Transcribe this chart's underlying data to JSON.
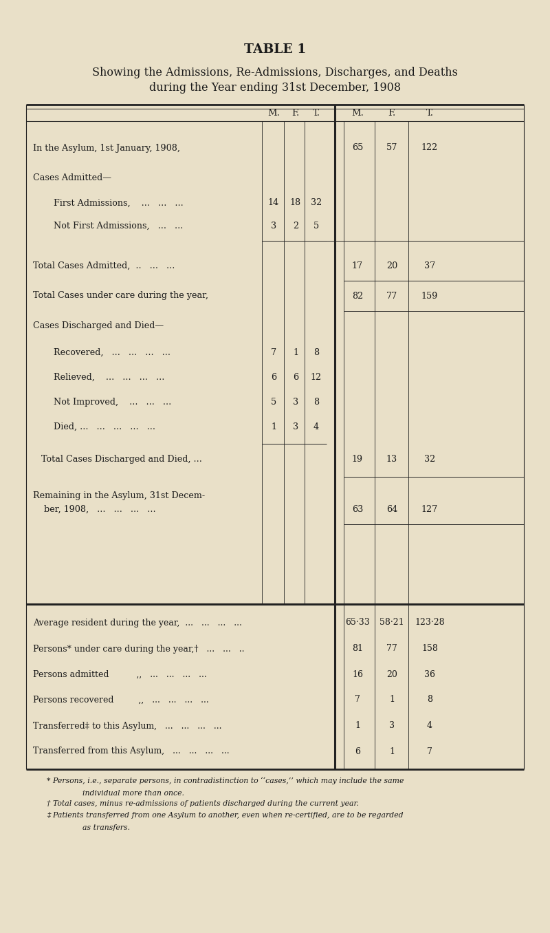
{
  "bg_color": "#e9e0c8",
  "text_color": "#1a1a1a",
  "title1": "TABLE 1",
  "title2": "Showing the Admissions, Re-Admissions, Discharges, and Deaths",
  "title3": "during the Year ending 31st December, 1908",
  "footnotes": [
    "* Persons, i.e., separate persons, in contradistinction to ‘‘cases,’’ which may include the same individual more than once.",
    "† Total cases, minus re-admissions of patients discharged during the current year.",
    "‡ Patients transferred from one Asylum to another, even when re-certified, are to be regarded as transfers."
  ]
}
